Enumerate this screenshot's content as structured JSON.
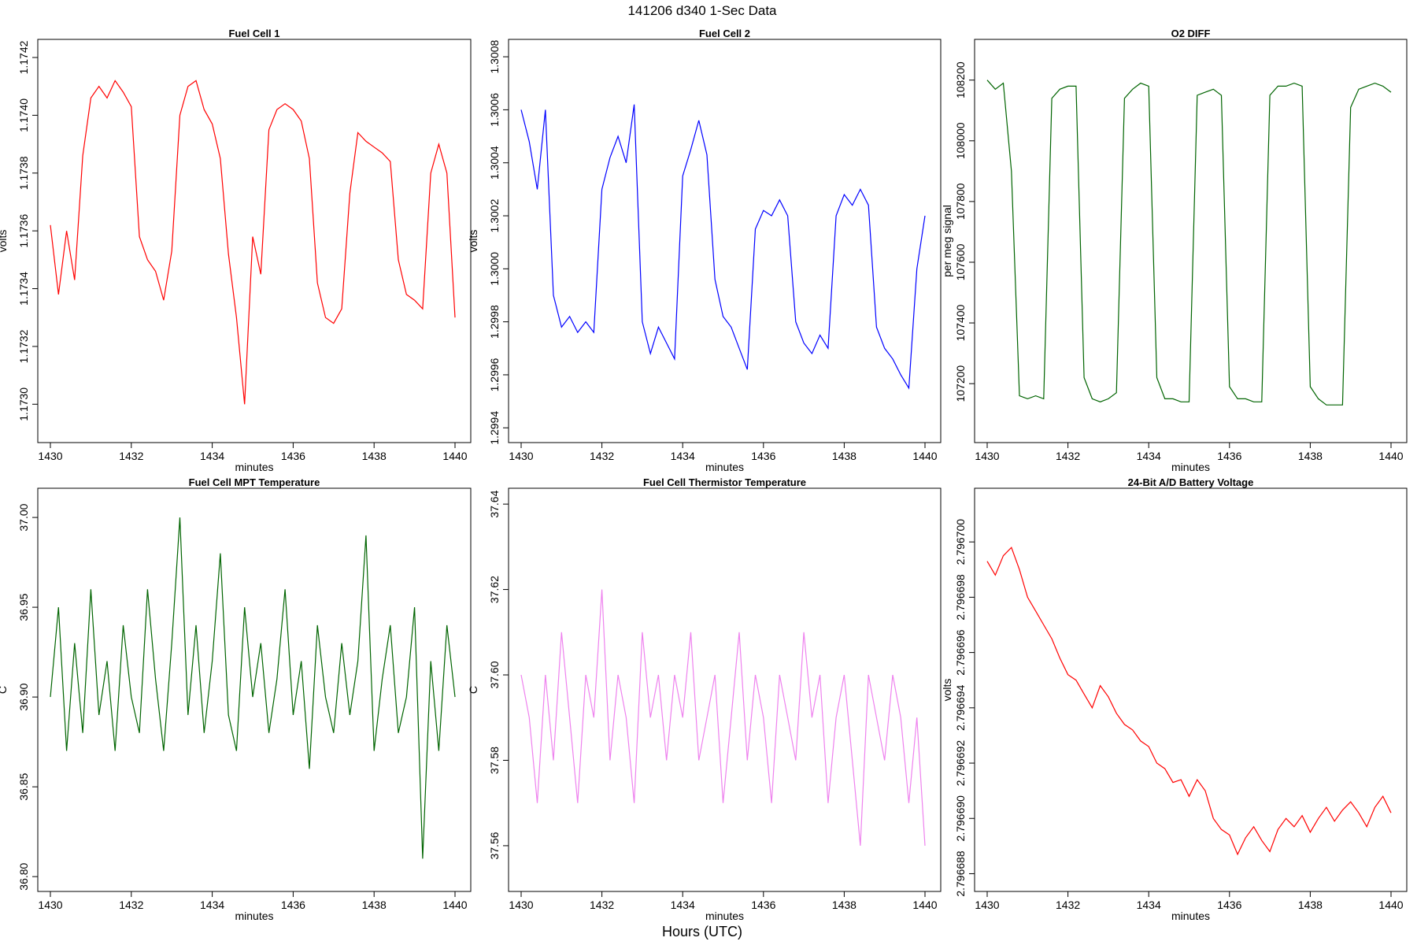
{
  "figure": {
    "title": "141206   d340   1-Sec Data",
    "xlabel": "Hours (UTC)"
  },
  "chart_data": [
    {
      "type": "line",
      "title": "Fuel Cell 1",
      "xlabel": "minutes",
      "ylabel": "volts",
      "color": "#ff0000",
      "xlim": [
        1430,
        1440
      ],
      "ylim": [
        1.1729,
        1.17423
      ],
      "xticks": [
        1430,
        1432,
        1434,
        1436,
        1438,
        1440
      ],
      "ytick_labels": [
        "1.1730",
        "1.1732",
        "1.1734",
        "1.1736",
        "1.1738",
        "1.1740",
        "1.1742"
      ],
      "x": [
        1430.0,
        1430.2,
        1430.4,
        1430.6,
        1430.8,
        1431.0,
        1431.2,
        1431.4,
        1431.6,
        1431.8,
        1432.0,
        1432.2,
        1432.4,
        1432.6,
        1432.8,
        1433.0,
        1433.2,
        1433.4,
        1433.6,
        1433.8,
        1434.0,
        1434.2,
        1434.4,
        1434.6,
        1434.8,
        1435.0,
        1435.2,
        1435.4,
        1435.6,
        1435.8,
        1436.0,
        1436.2,
        1436.4,
        1436.6,
        1436.8,
        1437.0,
        1437.2,
        1437.4,
        1437.6,
        1437.8,
        1438.0,
        1438.2,
        1438.4,
        1438.6,
        1438.8,
        1439.0,
        1439.2,
        1439.4,
        1439.6,
        1439.8,
        1440.0
      ],
      "y": [
        1.17362,
        1.17338,
        1.1736,
        1.17343,
        1.17386,
        1.17406,
        1.1741,
        1.17406,
        1.17412,
        1.17408,
        1.17403,
        1.17358,
        1.1735,
        1.17346,
        1.17336,
        1.17353,
        1.174,
        1.1741,
        1.17412,
        1.17402,
        1.17397,
        1.17385,
        1.17352,
        1.1733,
        1.173,
        1.17358,
        1.17345,
        1.17395,
        1.17402,
        1.17404,
        1.17402,
        1.17398,
        1.17385,
        1.17342,
        1.1733,
        1.17328,
        1.17333,
        1.17373,
        1.17394,
        1.17391,
        1.17389,
        1.17387,
        1.17384,
        1.1735,
        1.17338,
        1.17336,
        1.17333,
        1.1738,
        1.1739,
        1.1738,
        1.1733
      ]
    },
    {
      "type": "line",
      "title": "Fuel Cell 2",
      "xlabel": "minutes",
      "ylabel": "volts",
      "color": "#0000ff",
      "xlim": [
        1430,
        1440
      ],
      "ylim": [
        1.29938,
        1.30083
      ],
      "xticks": [
        1430,
        1432,
        1434,
        1436,
        1438,
        1440
      ],
      "ytick_labels": [
        "1.2994",
        "1.2996",
        "1.2998",
        "1.3000",
        "1.3002",
        "1.3004",
        "1.3006",
        "1.3008"
      ],
      "x": [
        1430.0,
        1430.2,
        1430.4,
        1430.6,
        1430.8,
        1431.0,
        1431.2,
        1431.4,
        1431.6,
        1431.8,
        1432.0,
        1432.2,
        1432.4,
        1432.6,
        1432.8,
        1433.0,
        1433.2,
        1433.4,
        1433.6,
        1433.8,
        1434.0,
        1434.2,
        1434.4,
        1434.6,
        1434.8,
        1435.0,
        1435.2,
        1435.4,
        1435.6,
        1435.8,
        1436.0,
        1436.2,
        1436.4,
        1436.6,
        1436.8,
        1437.0,
        1437.2,
        1437.4,
        1437.6,
        1437.8,
        1438.0,
        1438.2,
        1438.4,
        1438.6,
        1438.8,
        1439.0,
        1439.2,
        1439.4,
        1439.6,
        1439.8,
        1440.0
      ],
      "y": [
        1.3006,
        1.30048,
        1.3003,
        1.3006,
        1.2999,
        1.29978,
        1.29982,
        1.29976,
        1.2998,
        1.29976,
        1.3003,
        1.30042,
        1.3005,
        1.3004,
        1.30062,
        1.2998,
        1.29968,
        1.29978,
        1.29972,
        1.29966,
        1.30035,
        1.30045,
        1.30056,
        1.30043,
        1.29996,
        1.29982,
        1.29978,
        1.2997,
        1.29962,
        1.30015,
        1.30022,
        1.3002,
        1.30026,
        1.3002,
        1.2998,
        1.29972,
        1.29968,
        1.29975,
        1.2997,
        1.3002,
        1.30028,
        1.30024,
        1.3003,
        1.30024,
        1.29978,
        1.2997,
        1.29966,
        1.2996,
        1.29955,
        1.3,
        1.3002
      ]
    },
    {
      "type": "line",
      "title": "O2 DIFF",
      "xlabel": "minutes",
      "ylabel": "per meg signal",
      "color": "#006400",
      "xlim": [
        1430,
        1440
      ],
      "ylim": [
        107037,
        108303
      ],
      "xticks": [
        1430,
        1432,
        1434,
        1436,
        1438,
        1440
      ],
      "ytick_labels": [
        "107200",
        "107400",
        "107600",
        "107800",
        "108000",
        "108200"
      ],
      "x": [
        1430.0,
        1430.2,
        1430.4,
        1430.6,
        1430.8,
        1431.0,
        1431.2,
        1431.4,
        1431.6,
        1431.8,
        1432.0,
        1432.2,
        1432.4,
        1432.6,
        1432.8,
        1433.0,
        1433.2,
        1433.4,
        1433.6,
        1433.8,
        1434.0,
        1434.2,
        1434.4,
        1434.6,
        1434.8,
        1435.0,
        1435.2,
        1435.4,
        1435.6,
        1435.8,
        1436.0,
        1436.2,
        1436.4,
        1436.6,
        1436.8,
        1437.0,
        1437.2,
        1437.4,
        1437.6,
        1437.8,
        1438.0,
        1438.2,
        1438.4,
        1438.6,
        1438.8,
        1439.0,
        1439.2,
        1439.4,
        1439.6,
        1439.8,
        1440.0
      ],
      "y": [
        108200,
        108170,
        108190,
        107900,
        107160,
        107150,
        107160,
        107150,
        108140,
        108170,
        108180,
        108180,
        107220,
        107150,
        107140,
        107150,
        107170,
        108140,
        108170,
        108190,
        108180,
        107220,
        107150,
        107150,
        107140,
        107140,
        108150,
        108160,
        108170,
        108150,
        107190,
        107150,
        107150,
        107140,
        107140,
        108150,
        108180,
        108180,
        108190,
        108180,
        107190,
        107150,
        107130,
        107130,
        107130,
        108110,
        108170,
        108180,
        108190,
        108180,
        108160
      ]
    },
    {
      "type": "line",
      "title": "Fuel Cell MPT Temperature",
      "xlabel": "minutes",
      "ylabel": "C",
      "color": "#006400",
      "xlim": [
        1430,
        1440
      ],
      "ylim": [
        36.797,
        37.011
      ],
      "xticks": [
        1430,
        1432,
        1434,
        1436,
        1438,
        1440
      ],
      "ytick_labels": [
        "36.80",
        "36.85",
        "36.90",
        "36.95",
        "37.00"
      ],
      "x": [
        1430.0,
        1430.2,
        1430.4,
        1430.6,
        1430.8,
        1431.0,
        1431.2,
        1431.4,
        1431.6,
        1431.8,
        1432.0,
        1432.2,
        1432.4,
        1432.6,
        1432.8,
        1433.0,
        1433.2,
        1433.4,
        1433.6,
        1433.8,
        1434.0,
        1434.2,
        1434.4,
        1434.6,
        1434.8,
        1435.0,
        1435.2,
        1435.4,
        1435.6,
        1435.8,
        1436.0,
        1436.2,
        1436.4,
        1436.6,
        1436.8,
        1437.0,
        1437.2,
        1437.4,
        1437.6,
        1437.8,
        1438.0,
        1438.2,
        1438.4,
        1438.6,
        1438.8,
        1439.0,
        1439.2,
        1439.4,
        1439.6,
        1439.8,
        1440.0
      ],
      "y": [
        36.9,
        36.95,
        36.87,
        36.93,
        36.88,
        36.96,
        36.89,
        36.92,
        36.87,
        36.94,
        36.9,
        36.88,
        36.96,
        36.91,
        36.87,
        36.93,
        37.0,
        36.89,
        36.94,
        36.88,
        36.92,
        36.98,
        36.89,
        36.87,
        36.95,
        36.9,
        36.93,
        36.88,
        36.91,
        36.96,
        36.89,
        36.92,
        36.86,
        36.94,
        36.9,
        36.88,
        36.93,
        36.89,
        36.92,
        36.99,
        36.87,
        36.91,
        36.94,
        36.88,
        36.9,
        36.95,
        36.81,
        36.92,
        36.87,
        36.94,
        36.9
      ]
    },
    {
      "type": "line",
      "title": "Fuel Cell Thermistor Temperature",
      "xlabel": "minutes",
      "ylabel": "C",
      "color": "#ee82ee",
      "xlim": [
        1430,
        1440
      ],
      "ylim": [
        37.5515,
        37.6415
      ],
      "xticks": [
        1430,
        1432,
        1434,
        1436,
        1438,
        1440
      ],
      "ytick_labels": [
        "37.56",
        "37.58",
        "37.60",
        "37.62",
        "37.64"
      ],
      "x": [
        1430.0,
        1430.2,
        1430.4,
        1430.6,
        1430.8,
        1431.0,
        1431.2,
        1431.4,
        1431.6,
        1431.8,
        1432.0,
        1432.2,
        1432.4,
        1432.6,
        1432.8,
        1433.0,
        1433.2,
        1433.4,
        1433.6,
        1433.8,
        1434.0,
        1434.2,
        1434.4,
        1434.6,
        1434.8,
        1435.0,
        1435.2,
        1435.4,
        1435.6,
        1435.8,
        1436.0,
        1436.2,
        1436.4,
        1436.6,
        1436.8,
        1437.0,
        1437.2,
        1437.4,
        1437.6,
        1437.8,
        1438.0,
        1438.2,
        1438.4,
        1438.6,
        1438.8,
        1439.0,
        1439.2,
        1439.4,
        1439.6,
        1439.8,
        1440.0
      ],
      "y": [
        37.6,
        37.59,
        37.57,
        37.6,
        37.58,
        37.61,
        37.59,
        37.57,
        37.6,
        37.59,
        37.62,
        37.58,
        37.6,
        37.59,
        37.57,
        37.61,
        37.59,
        37.6,
        37.58,
        37.6,
        37.59,
        37.61,
        37.58,
        37.59,
        37.6,
        37.57,
        37.59,
        37.61,
        37.58,
        37.6,
        37.59,
        37.57,
        37.6,
        37.59,
        37.58,
        37.61,
        37.59,
        37.6,
        37.57,
        37.59,
        37.6,
        37.58,
        37.56,
        37.6,
        37.59,
        37.58,
        37.6,
        37.59,
        37.57,
        37.59,
        37.56
      ]
    },
    {
      "type": "line",
      "title": "24-Bit A/D Battery Voltage",
      "xlabel": "minutes",
      "ylabel": "volts",
      "color": "#ff0000",
      "xlim": [
        1430,
        1440
      ],
      "ylim": [
        2.7966877,
        2.7967016
      ],
      "xticks": [
        1430,
        1432,
        1434,
        1436,
        1438,
        1440
      ],
      "ytick_labels": [
        "2.796688",
        "2.796690",
        "2.796692",
        "2.796694",
        "2.796696",
        "2.796698",
        "2.796700"
      ],
      "x": [
        1430.0,
        1430.2,
        1430.4,
        1430.6,
        1430.8,
        1431.0,
        1431.2,
        1431.4,
        1431.6,
        1431.8,
        1432.0,
        1432.2,
        1432.4,
        1432.6,
        1432.8,
        1433.0,
        1433.2,
        1433.4,
        1433.6,
        1433.8,
        1434.0,
        1434.2,
        1434.4,
        1434.6,
        1434.8,
        1435.0,
        1435.2,
        1435.4,
        1435.6,
        1435.8,
        1436.0,
        1436.2,
        1436.4,
        1436.6,
        1436.8,
        1437.0,
        1437.2,
        1437.4,
        1437.6,
        1437.8,
        1438.0,
        1438.2,
        1438.4,
        1438.6,
        1438.8,
        1439.0,
        1439.2,
        1439.4,
        1439.6,
        1439.8,
        1440.0
      ],
      "y": [
        2.7966993,
        2.7966988,
        2.7966995,
        2.7966998,
        2.796699,
        2.796698,
        2.7966975,
        2.796697,
        2.7966965,
        2.7966958,
        2.7966952,
        2.796695,
        2.7966945,
        2.796694,
        2.7966948,
        2.7966944,
        2.7966938,
        2.7966934,
        2.7966932,
        2.7966928,
        2.7966926,
        2.796692,
        2.7966918,
        2.7966913,
        2.7966914,
        2.7966908,
        2.7966914,
        2.796691,
        2.79669,
        2.7966896,
        2.7966894,
        2.7966887,
        2.7966893,
        2.7966897,
        2.7966892,
        2.7966888,
        2.7966896,
        2.79669,
        2.7966897,
        2.7966901,
        2.7966895,
        2.79669,
        2.7966904,
        2.7966899,
        2.7966903,
        2.7966906,
        2.7966902,
        2.7966897,
        2.7966904,
        2.7966908,
        2.7966902
      ]
    }
  ]
}
